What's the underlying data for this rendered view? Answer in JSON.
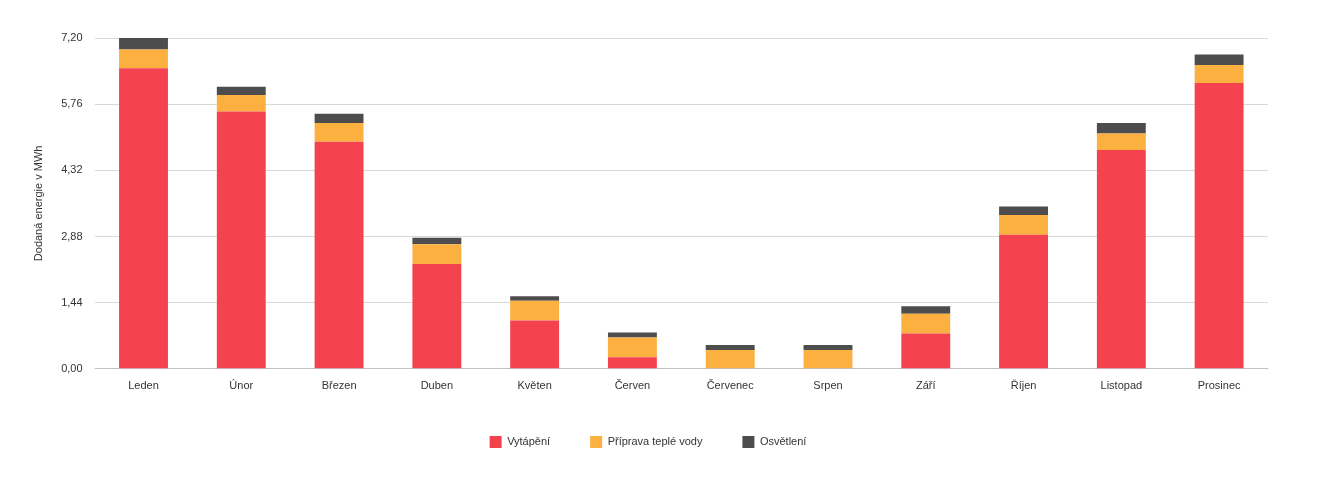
{
  "chart_data": {
    "type": "bar",
    "stacked": true,
    "ylabel": "Dodaná energie v MWh",
    "categories": [
      "Leden",
      "Únor",
      "Březen",
      "Duben",
      "Květen",
      "Červen",
      "Červenec",
      "Srpen",
      "Září",
      "Říjen",
      "Listopad",
      "Prosinec"
    ],
    "series": [
      {
        "name": "Vytápění",
        "color": "#f5424f",
        "values": [
          6.54,
          5.6,
          4.94,
          2.28,
          1.05,
          0.25,
          null,
          null,
          0.77,
          2.92,
          4.76,
          6.22
        ]
      },
      {
        "name": "Příprava teplé vody",
        "color": "#fbb040",
        "values": [
          0.41,
          0.36,
          0.41,
          0.43,
          0.43,
          0.43,
          0.41,
          0.41,
          0.43,
          0.43,
          0.36,
          0.39
        ]
      },
      {
        "name": "Osvětlení",
        "color": "#4d4d4d",
        "values": [
          0.25,
          0.18,
          0.2,
          0.14,
          0.1,
          0.11,
          0.11,
          0.11,
          0.16,
          0.18,
          0.23,
          0.23
        ]
      }
    ],
    "ylim": [
      0,
      7.2
    ],
    "yticks": [
      {
        "value": 0,
        "label": "0,00"
      },
      {
        "value": 1.44,
        "label": "1,44"
      },
      {
        "value": 2.88,
        "label": "2,88"
      },
      {
        "value": 4.32,
        "label": "4,32"
      },
      {
        "value": 5.76,
        "label": "5,76"
      },
      {
        "value": 7.2,
        "label": "7,20"
      }
    ],
    "grid": "y",
    "legend": "bottom"
  }
}
